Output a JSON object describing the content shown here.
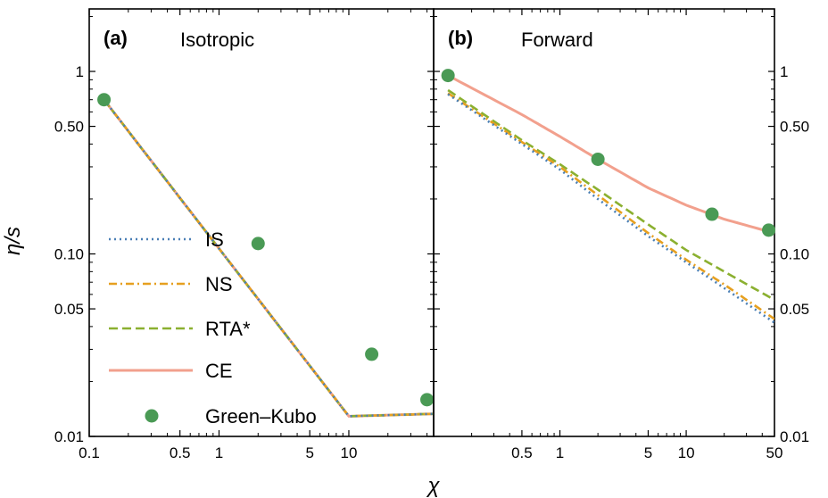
{
  "figure": {
    "ylabel": "η/s",
    "xlabel": "χ"
  },
  "legend": [
    {
      "label": "IS",
      "style": "dotted",
      "color": "#4a7fb5"
    },
    {
      "label": "NS",
      "style": "dashdot",
      "color": "#e6a020"
    },
    {
      "label": "RTA*",
      "style": "dashed",
      "color": "#8bb030"
    },
    {
      "label": "CE",
      "style": "solid",
      "color": "#f2a08d"
    },
    {
      "label": "Green–Kubo",
      "style": "marker",
      "color": "#4a9a55"
    }
  ],
  "chart_data": [
    {
      "type": "line",
      "panel_tag": "(a)",
      "title": "Isotropic",
      "xscale": "log",
      "yscale": "log",
      "xlim": [
        0.1,
        45
      ],
      "ylim": [
        0.01,
        2.2
      ],
      "xticks": [
        {
          "v": 0.1,
          "label": "0.1"
        },
        {
          "v": 0.5,
          "label": "0.5"
        },
        {
          "v": 1,
          "label": "1"
        },
        {
          "v": 5,
          "label": "5"
        },
        {
          "v": 10,
          "label": "10"
        }
      ],
      "yticks": [
        {
          "v": 0.01,
          "label": "0.01"
        },
        {
          "v": 0.05,
          "label": "0.05"
        },
        {
          "v": 0.1,
          "label": "0.10"
        },
        {
          "v": 0.5,
          "label": "0.50"
        },
        {
          "v": 1,
          "label": "1"
        }
      ],
      "series": [
        {
          "name": "IS",
          "x": [
            0.13,
            1,
            10,
            45
          ],
          "y": [
            0.7,
            0.107,
            0.0129,
            0.0133
          ]
        },
        {
          "name": "NS",
          "x": [
            0.13,
            1,
            10,
            45
          ],
          "y": [
            0.7,
            0.107,
            0.0129,
            0.0133
          ]
        },
        {
          "name": "RTA*",
          "x": [
            0.13,
            1,
            10,
            45
          ],
          "y": [
            0.7,
            0.107,
            0.0129,
            0.0133
          ]
        },
        {
          "name": "CE",
          "x": [
            0.13,
            1,
            10,
            45
          ],
          "y": [
            0.7,
            0.107,
            0.0129,
            0.0133
          ]
        },
        {
          "name": "Green–Kubo",
          "x": [
            0.13,
            2,
            15,
            40
          ],
          "y": [
            0.7,
            0.114,
            0.0282,
            0.0159
          ]
        }
      ]
    },
    {
      "type": "line",
      "panel_tag": "(b)",
      "title": "Forward",
      "xscale": "log",
      "yscale": "log",
      "xlim": [
        0.1,
        50
      ],
      "ylim": [
        0.01,
        2.2
      ],
      "xticks": [
        {
          "v": 0.5,
          "label": "0.5"
        },
        {
          "v": 1,
          "label": "1"
        },
        {
          "v": 5,
          "label": "5"
        },
        {
          "v": 10,
          "label": "10"
        },
        {
          "v": 50,
          "label": "50"
        }
      ],
      "yticks": [
        {
          "v": 0.01,
          "label": "0.01"
        },
        {
          "v": 0.05,
          "label": "0.05"
        },
        {
          "v": 0.1,
          "label": "0.10"
        },
        {
          "v": 0.5,
          "label": "0.50"
        },
        {
          "v": 1,
          "label": "1"
        }
      ],
      "series": [
        {
          "name": "IS",
          "x": [
            0.13,
            0.5,
            1,
            2,
            5,
            10,
            20,
            50
          ],
          "y": [
            0.75,
            0.4,
            0.29,
            0.2,
            0.125,
            0.09,
            0.065,
            0.042
          ]
        },
        {
          "name": "NS",
          "x": [
            0.13,
            0.5,
            1,
            2,
            5,
            10,
            20,
            50
          ],
          "y": [
            0.76,
            0.41,
            0.3,
            0.21,
            0.13,
            0.093,
            0.068,
            0.044
          ]
        },
        {
          "name": "RTA*",
          "x": [
            0.13,
            0.5,
            1,
            2,
            5,
            10,
            20,
            50
          ],
          "y": [
            0.79,
            0.42,
            0.31,
            0.225,
            0.145,
            0.105,
            0.08,
            0.056
          ]
        },
        {
          "name": "CE",
          "x": [
            0.13,
            0.5,
            1,
            2,
            5,
            10,
            20,
            50
          ],
          "y": [
            0.95,
            0.58,
            0.44,
            0.33,
            0.23,
            0.185,
            0.155,
            0.13
          ]
        },
        {
          "name": "Green–Kubo",
          "x": [
            0.13,
            2,
            16,
            45
          ],
          "y": [
            0.95,
            0.33,
            0.165,
            0.135
          ]
        }
      ]
    }
  ]
}
